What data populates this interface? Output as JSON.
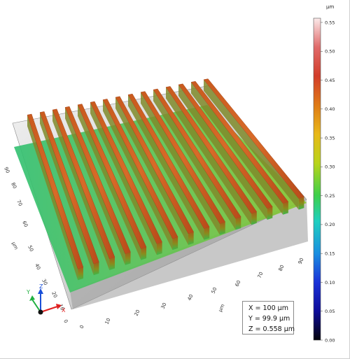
{
  "readout": {
    "x": "X = 100 µm",
    "y": "Y = 99.9 µm",
    "z": "Z = 0.558 µm"
  },
  "colorbar": {
    "unit": "µm",
    "ticks": [
      "0.55",
      "0.50",
      "0.45",
      "0.40",
      "0.35",
      "0.30",
      "0.25",
      "0.20",
      "0.15",
      "0.10",
      "0.05",
      "0.00"
    ],
    "colors": [
      "#fbeaea",
      "#e4494a",
      "#d65a1c",
      "#e28a18",
      "#ead11c",
      "#9ad41c",
      "#2fd060",
      "#1fcfcf",
      "#1a7fe0",
      "#1325d8",
      "#0d0b95",
      "#05050f"
    ]
  },
  "axes": {
    "x_ticks": [
      "0",
      "10",
      "20",
      "30",
      "40",
      "50",
      "60",
      "70",
      "80",
      "90"
    ],
    "x_unit": "µm",
    "y_ticks": [
      "0",
      "10",
      "20",
      "30",
      "40",
      "50",
      "60",
      "70",
      "80",
      "90"
    ],
    "y_unit": "µm",
    "triad": {
      "x": "X",
      "y": "Y",
      "z": "Z"
    }
  }
}
